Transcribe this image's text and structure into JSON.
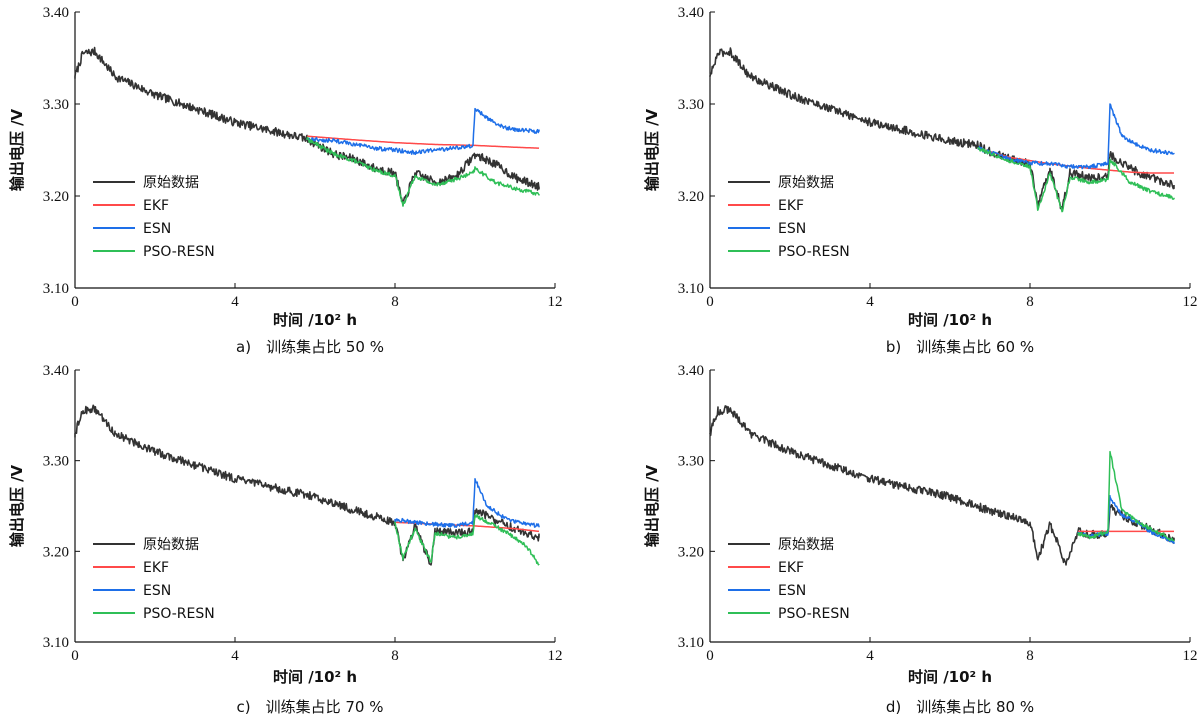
{
  "chart_data": [
    {
      "type": "line",
      "caption": "a)　训练集占比 50 %",
      "xlabel": "时间 /10² h",
      "ylabel": "输出电压 /V",
      "xlim": [
        0,
        12
      ],
      "ylim": [
        3.1,
        3.4
      ],
      "xticks": [
        "0",
        "4",
        "8",
        "12"
      ],
      "yticks": [
        "3.10",
        "3.20",
        "3.30",
        "3.40"
      ],
      "legend_position": "lower-left",
      "series": [
        {
          "name": "原始数据",
          "color": "#333333",
          "x": [
            0,
            0.2,
            0.5,
            1,
            2,
            3,
            4,
            5,
            5.8,
            6.5,
            7,
            7.5,
            8,
            8.2,
            8.5,
            9,
            9.5,
            10,
            10.5,
            11,
            11.6
          ],
          "y": [
            3.33,
            3.355,
            3.357,
            3.33,
            3.31,
            3.295,
            3.28,
            3.27,
            3.262,
            3.245,
            3.24,
            3.23,
            3.225,
            3.19,
            3.225,
            3.215,
            3.22,
            3.245,
            3.235,
            3.22,
            3.21
          ]
        },
        {
          "name": "EKF",
          "color": "#ff4a4a",
          "x": [
            5.8,
            7,
            8,
            9,
            10,
            11,
            11.6
          ],
          "y": [
            3.265,
            3.261,
            3.258,
            3.256,
            3.255,
            3.253,
            3.252
          ]
        },
        {
          "name": "ESN",
          "color": "#1e6fe8",
          "x": [
            5.8,
            6.5,
            7,
            7.5,
            8,
            8.5,
            9,
            9.5,
            9.95,
            10,
            10.3,
            10.7,
            11,
            11.6
          ],
          "y": [
            3.262,
            3.26,
            3.256,
            3.252,
            3.25,
            3.247,
            3.25,
            3.252,
            3.255,
            3.295,
            3.285,
            3.275,
            3.272,
            3.27
          ]
        },
        {
          "name": "PSO-RESN",
          "color": "#2fbf57",
          "x": [
            5.8,
            6.5,
            7,
            7.5,
            8,
            8.2,
            8.5,
            9,
            9.5,
            9.95,
            10,
            10.5,
            11,
            11.6
          ],
          "y": [
            3.262,
            3.245,
            3.238,
            3.228,
            3.222,
            3.19,
            3.222,
            3.212,
            3.218,
            3.225,
            3.23,
            3.215,
            3.208,
            3.202
          ]
        }
      ]
    },
    {
      "type": "line",
      "caption": "b)　训练集占比 60 %",
      "xlabel": "时间 /10² h",
      "ylabel": "输出电压 /V",
      "xlim": [
        0,
        12
      ],
      "ylim": [
        3.1,
        3.4
      ],
      "xticks": [
        "0",
        "4",
        "8",
        "12"
      ],
      "yticks": [
        "3.10",
        "3.20",
        "3.30",
        "3.40"
      ],
      "legend_position": "lower-left",
      "series": [
        {
          "name": "原始数据",
          "color": "#333333",
          "x": [
            0,
            0.2,
            0.5,
            1,
            2,
            3,
            4,
            5,
            6,
            6.7,
            7,
            7.5,
            8,
            8.2,
            8.5,
            8.8,
            9,
            9.5,
            9.95,
            10,
            10.5,
            11,
            11.6
          ],
          "y": [
            3.33,
            3.355,
            3.357,
            3.33,
            3.31,
            3.295,
            3.28,
            3.27,
            3.26,
            3.255,
            3.248,
            3.24,
            3.235,
            3.19,
            3.23,
            3.185,
            3.225,
            3.22,
            3.222,
            3.245,
            3.23,
            3.22,
            3.212
          ]
        },
        {
          "name": "EKF",
          "color": "#ff4a4a",
          "x": [
            6.7,
            7.5,
            8.5,
            9.5,
            10,
            10.5,
            11,
            11.6
          ],
          "y": [
            3.252,
            3.242,
            3.235,
            3.23,
            3.228,
            3.226,
            3.225,
            3.225
          ]
        },
        {
          "name": "ESN",
          "color": "#1e6fe8",
          "x": [
            6.7,
            7.5,
            8,
            8.5,
            9,
            9.5,
            9.95,
            10,
            10.3,
            10.7,
            11,
            11.6
          ],
          "y": [
            3.252,
            3.24,
            3.236,
            3.235,
            3.232,
            3.232,
            3.235,
            3.3,
            3.265,
            3.255,
            3.25,
            3.246
          ]
        },
        {
          "name": "PSO-RESN",
          "color": "#2fbf57",
          "x": [
            6.7,
            7.5,
            8,
            8.2,
            8.5,
            8.8,
            9,
            9.5,
            9.95,
            10,
            10.5,
            11,
            11.6
          ],
          "y": [
            3.252,
            3.238,
            3.232,
            3.185,
            3.225,
            3.183,
            3.22,
            3.215,
            3.218,
            3.24,
            3.215,
            3.205,
            3.198
          ]
        }
      ]
    },
    {
      "type": "line",
      "caption": "c)　训练集占比 70 %",
      "xlabel": "时间 /10² h",
      "ylabel": "输出电压 /V",
      "xlim": [
        0,
        12
      ],
      "ylim": [
        3.1,
        3.4
      ],
      "xticks": [
        "0",
        "4",
        "8",
        "12"
      ],
      "yticks": [
        "3.10",
        "3.20",
        "3.30",
        "3.40"
      ],
      "legend_position": "lower-left",
      "series": [
        {
          "name": "原始数据",
          "color": "#333333",
          "x": [
            0,
            0.2,
            0.5,
            1,
            2,
            3,
            4,
            5,
            6,
            7,
            8,
            8.2,
            8.5,
            8.9,
            9,
            9.5,
            9.95,
            10,
            10.5,
            11,
            11.6
          ],
          "y": [
            3.33,
            3.355,
            3.357,
            3.33,
            3.31,
            3.295,
            3.28,
            3.27,
            3.26,
            3.245,
            3.232,
            3.19,
            3.228,
            3.185,
            3.222,
            3.22,
            3.222,
            3.245,
            3.235,
            3.225,
            3.215
          ]
        },
        {
          "name": "EKF",
          "color": "#ff4a4a",
          "x": [
            8,
            9,
            10,
            11,
            11.6
          ],
          "y": [
            3.232,
            3.23,
            3.228,
            3.225,
            3.222
          ]
        },
        {
          "name": "ESN",
          "color": "#1e6fe8",
          "x": [
            8,
            8.5,
            9,
            9.5,
            9.95,
            10,
            10.3,
            10.7,
            11,
            11.6
          ],
          "y": [
            3.235,
            3.232,
            3.23,
            3.228,
            3.232,
            3.28,
            3.25,
            3.238,
            3.233,
            3.228
          ]
        },
        {
          "name": "PSO-RESN",
          "color": "#2fbf57",
          "x": [
            8,
            8.2,
            8.5,
            8.9,
            9,
            9.5,
            9.95,
            10,
            10.5,
            11,
            11.3,
            11.6
          ],
          "y": [
            3.232,
            3.192,
            3.225,
            3.188,
            3.22,
            3.215,
            3.22,
            3.24,
            3.228,
            3.215,
            3.205,
            3.185
          ]
        }
      ]
    },
    {
      "type": "line",
      "caption": "d)　训练集占比 80 %",
      "xlabel": "时间 /10² h",
      "ylabel": "输出电压 /V",
      "xlim": [
        0,
        12
      ],
      "ylim": [
        3.1,
        3.4
      ],
      "xticks": [
        "0",
        "4",
        "8",
        "12"
      ],
      "yticks": [
        "3.10",
        "3.20",
        "3.30",
        "3.40"
      ],
      "legend_position": "lower-left",
      "series": [
        {
          "name": "原始数据",
          "color": "#333333",
          "x": [
            0,
            0.2,
            0.5,
            1,
            2,
            3,
            4,
            5,
            6,
            7,
            8,
            8.2,
            8.5,
            8.9,
            9.2,
            9.5,
            9.95,
            10,
            10.5,
            11,
            11.6
          ],
          "y": [
            3.33,
            3.355,
            3.357,
            3.33,
            3.31,
            3.295,
            3.28,
            3.27,
            3.26,
            3.245,
            3.232,
            3.192,
            3.23,
            3.185,
            3.222,
            3.218,
            3.22,
            3.248,
            3.235,
            3.225,
            3.212
          ]
        },
        {
          "name": "EKF",
          "color": "#ff4a4a",
          "x": [
            9.2,
            10,
            11,
            11.6
          ],
          "y": [
            3.222,
            3.222,
            3.222,
            3.222
          ]
        },
        {
          "name": "ESN",
          "color": "#1e6fe8",
          "x": [
            9.2,
            9.5,
            9.95,
            10,
            10.3,
            10.7,
            11,
            11.6
          ],
          "y": [
            3.22,
            3.217,
            3.22,
            3.26,
            3.24,
            3.232,
            3.222,
            3.21
          ]
        },
        {
          "name": "PSO-RESN",
          "color": "#2fbf57",
          "x": [
            9.2,
            9.5,
            9.95,
            10,
            10.3,
            10.7,
            11,
            11.6
          ],
          "y": [
            3.22,
            3.215,
            3.222,
            3.31,
            3.245,
            3.232,
            3.225,
            3.212
          ]
        }
      ]
    }
  ]
}
